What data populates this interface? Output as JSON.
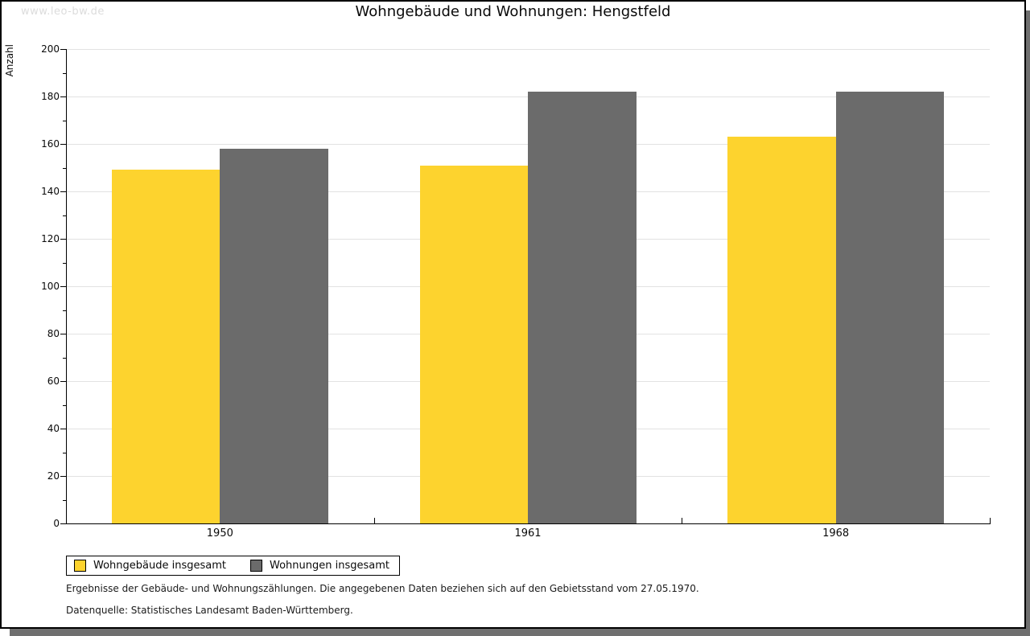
{
  "watermark": "www.leo-bw.de",
  "title": "Wohngebäude und Wohnungen: Hengstfeld",
  "chart_data": {
    "type": "bar",
    "categories": [
      "1950",
      "1961",
      "1968"
    ],
    "series": [
      {
        "name": "Wohngebäude insgesamt",
        "color": "#fdd32e",
        "values": [
          149,
          151,
          163
        ]
      },
      {
        "name": "Wohnungen insgesamt",
        "color": "#6b6b6b",
        "values": [
          158,
          182,
          182
        ]
      }
    ],
    "title": "Wohngebäude und Wohnungen: Hengstfeld",
    "xlabel": "",
    "ylabel": "Anzahl",
    "ylim": [
      0,
      200
    ],
    "ytick_step": 20,
    "minor_tick_step": 10,
    "grid": true,
    "legend_position": "bottom-left"
  },
  "footnotes": [
    "Ergebnisse der Gebäude- und Wohnungszählungen. Die angegebenen Daten beziehen sich auf den Gebietsstand vom 27.05.1970.",
    "Datenquelle: Statistisches Landesamt Baden-Württemberg."
  ]
}
